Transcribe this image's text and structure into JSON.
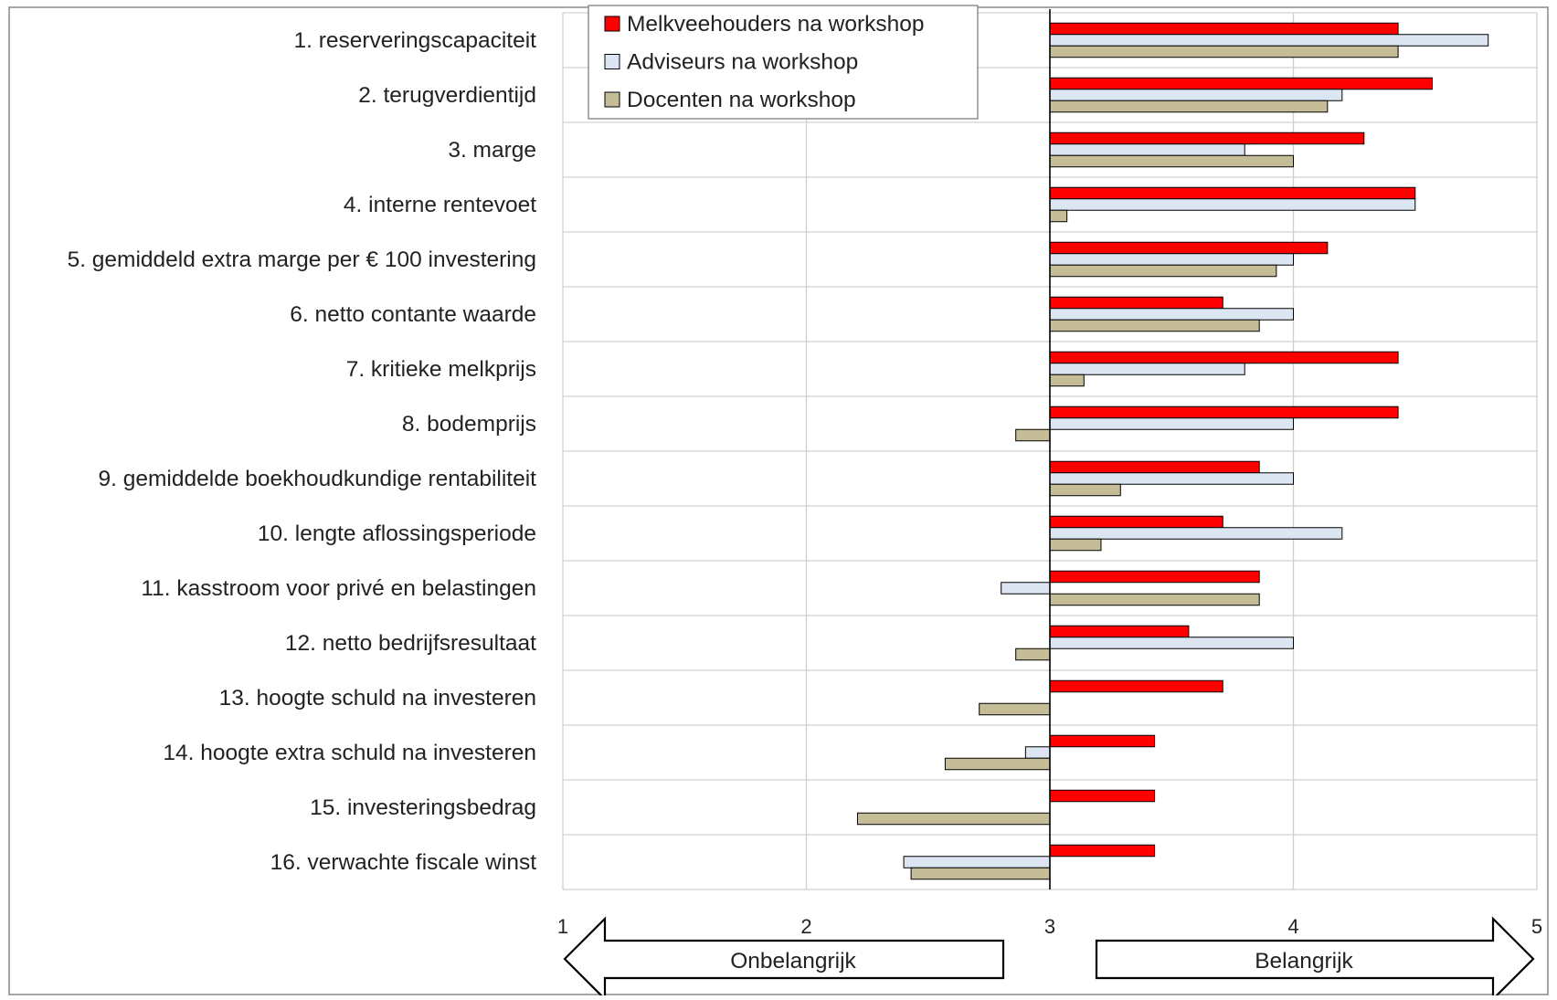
{
  "chart_data": {
    "type": "bar",
    "orientation": "horizontal",
    "baseline": 3,
    "xlim": [
      1,
      5
    ],
    "xticks": [
      1,
      2,
      3,
      4,
      5
    ],
    "grid": true,
    "legend_position": "top-left",
    "categories": [
      "1. reserveringscapaciteit",
      "2. terugverdientijd",
      "3. marge",
      "4. interne rentevoet",
      "5. gemiddeld extra marge per € 100 investering",
      "6. netto contante waarde",
      "7. kritieke melkprijs",
      "8. bodemprijs",
      "9. gemiddelde boekhoudkundige rentabiliteit",
      "10. lengte aflossingsperiode",
      "11. kasstroom voor privé en belastingen",
      "12. netto bedrijfsresultaat",
      "13. hoogte schuld na investeren",
      "14. hoogte extra schuld na investeren",
      "15. investeringsbedrag",
      "16. verwachte fiscale winst"
    ],
    "series": [
      {
        "name": "Melkveehouders na workshop",
        "color": "#ff0000",
        "values": [
          4.43,
          4.57,
          4.29,
          4.5,
          4.14,
          3.71,
          4.43,
          4.43,
          3.86,
          3.71,
          3.86,
          3.57,
          3.71,
          3.43,
          3.43,
          3.43
        ]
      },
      {
        "name": "Adviseurs na workshop",
        "color": "#dce6f2",
        "values": [
          4.8,
          4.2,
          3.8,
          4.5,
          4.0,
          4.0,
          3.8,
          4.0,
          4.0,
          4.2,
          2.8,
          4.0,
          3.0,
          2.9,
          3.0,
          2.4
        ]
      },
      {
        "name": "Docenten na workshop",
        "color": "#c4bd97",
        "values": [
          4.43,
          4.14,
          4.0,
          3.07,
          3.93,
          3.86,
          3.14,
          2.86,
          3.29,
          3.21,
          3.86,
          2.86,
          2.71,
          2.57,
          2.21,
          2.43
        ]
      }
    ],
    "annotations": {
      "left_arrow": "Onbelangrijk",
      "right_arrow": "Belangrijk"
    }
  }
}
